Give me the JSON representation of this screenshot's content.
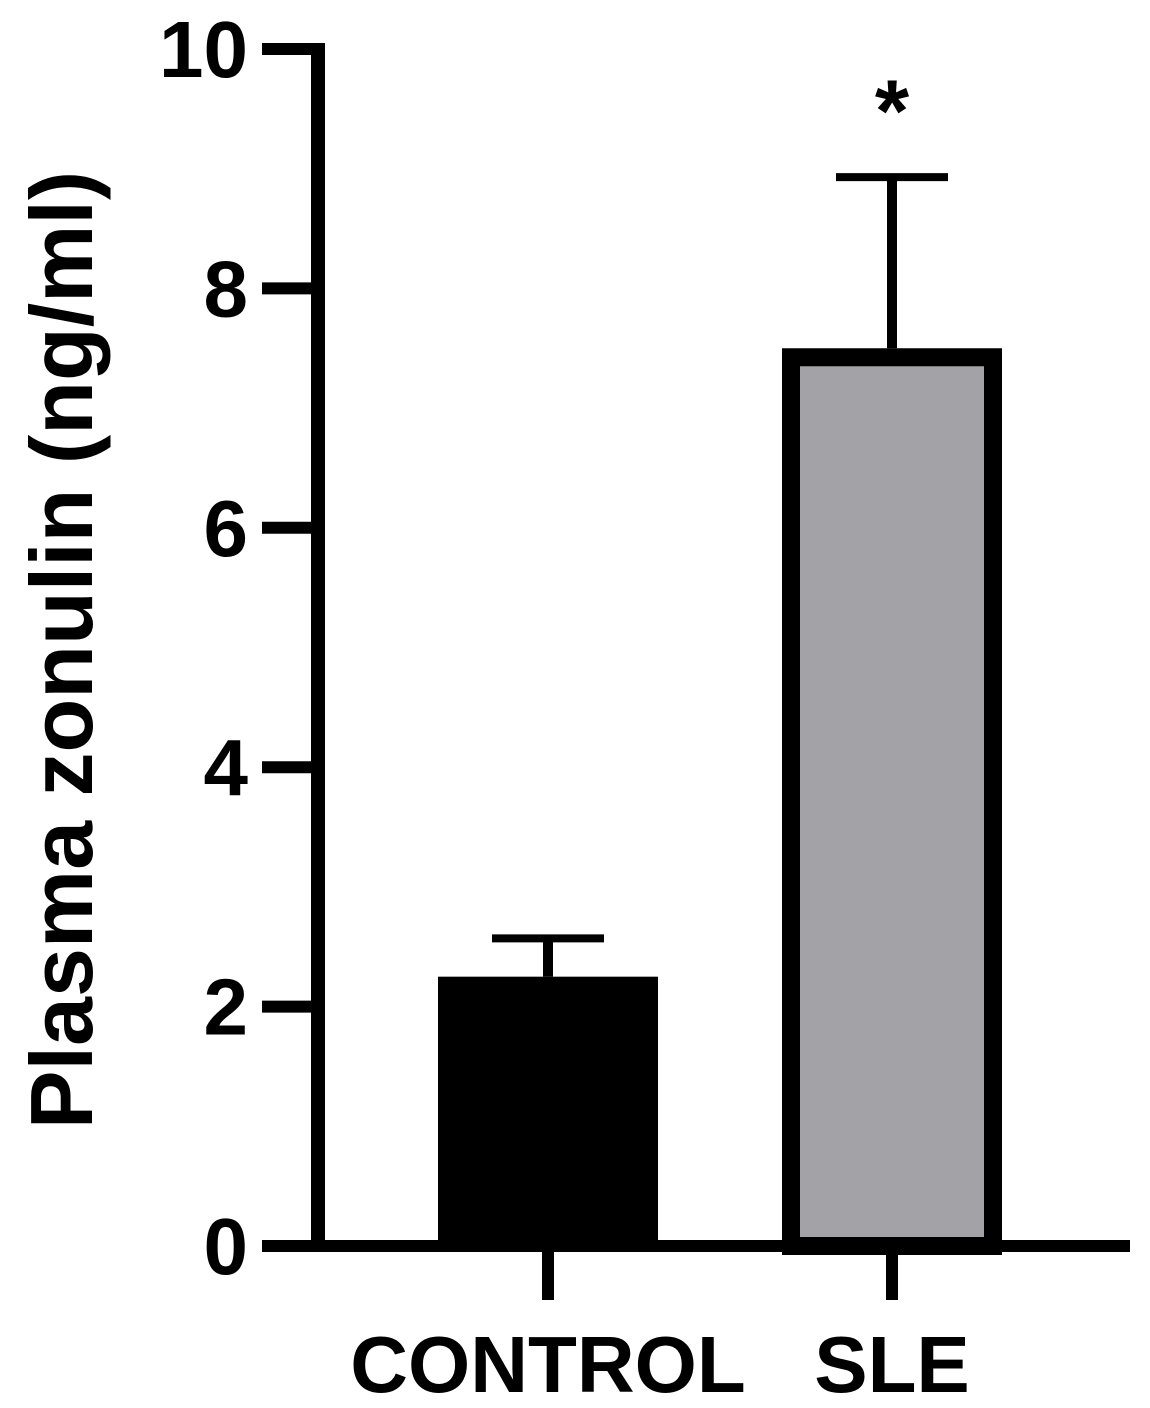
{
  "chart_data": {
    "type": "bar",
    "title": "",
    "xlabel": "",
    "ylabel": "Plasma zonulin (ng/ml)",
    "ylim": [
      0,
      10
    ],
    "yticks": [
      0,
      2,
      4,
      6,
      8,
      10
    ],
    "grid": false,
    "categories": [
      "CONTROL",
      "SLE"
    ],
    "values": [
      2.25,
      7.5
    ],
    "error_upper": [
      2.57,
      8.93
    ],
    "colors": [
      "#000000",
      "#a3a2a7"
    ],
    "annotations": [
      {
        "category": "SLE",
        "text": "*"
      }
    ]
  }
}
